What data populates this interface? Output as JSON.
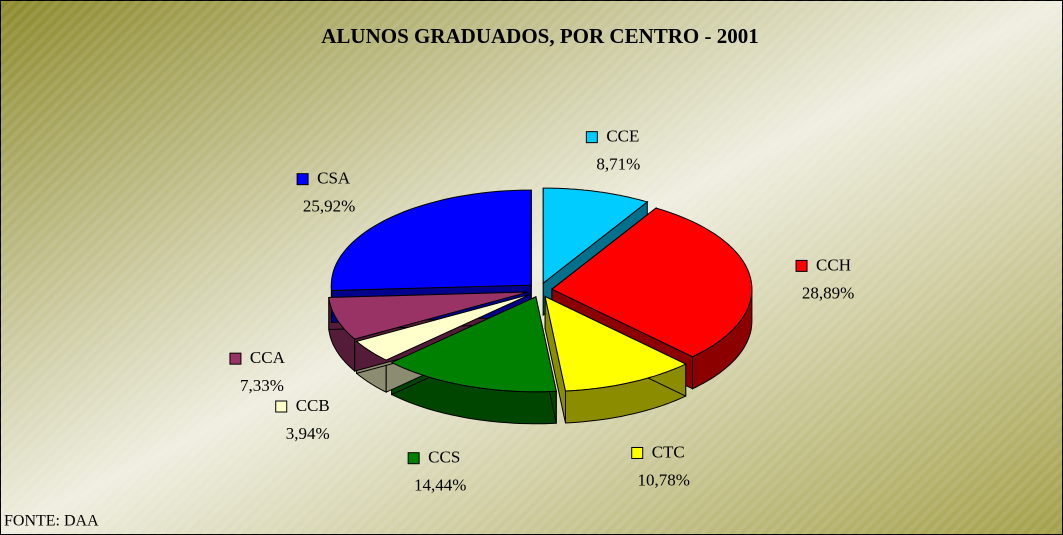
{
  "chart_data": {
    "type": "pie",
    "title": "ALUNOS GRADUADOS, POR CENTRO - 2001",
    "categories": [
      "CCE",
      "CCH",
      "CTC",
      "CCS",
      "CCB",
      "CCA",
      "CSA"
    ],
    "values": [
      8.71,
      28.89,
      10.78,
      14.44,
      3.94,
      7.33,
      25.92
    ],
    "value_labels": [
      "8,71%",
      "28,89%",
      "10,78%",
      "14,44%",
      "3,94%",
      "7,33%",
      "25,92%"
    ],
    "colors": [
      "#00ccff",
      "#ff0000",
      "#ffff00",
      "#008000",
      "#ffffcc",
      "#993366",
      "#0000ff"
    ],
    "source": "FONTE: DAA"
  }
}
